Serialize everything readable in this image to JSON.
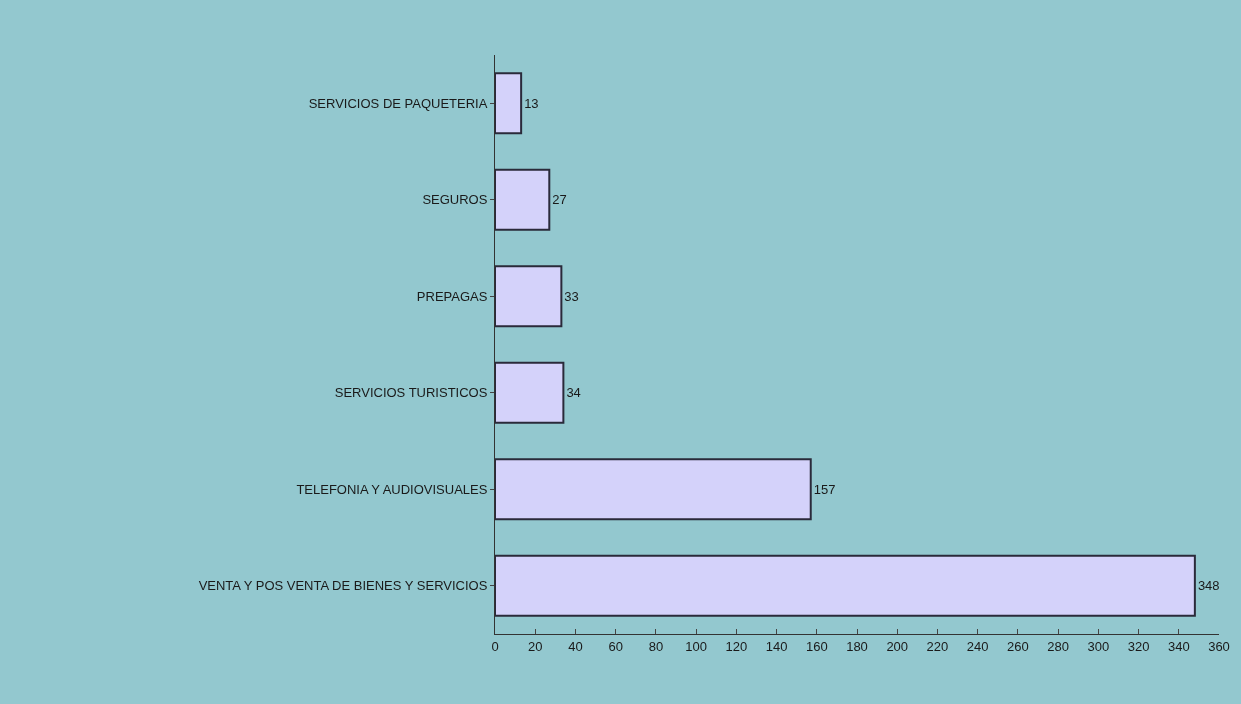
{
  "chart_data": {
    "type": "bar",
    "orientation": "horizontal",
    "categories": [
      "SERVICIOS DE PAQUETERIA",
      "SEGUROS",
      "PREPAGAS",
      "SERVICIOS TURISTICOS",
      "TELEFONIA Y AUDIOVISUALES",
      "VENTA Y POS VENTA DE BIENES Y SERVICIOS"
    ],
    "values": [
      13,
      27,
      33,
      34,
      157,
      348
    ],
    "color": "#d4d2fa",
    "xlim": [
      0,
      360
    ],
    "xticks": [
      0,
      20,
      40,
      60,
      80,
      100,
      120,
      140,
      160,
      180,
      200,
      220,
      240,
      260,
      280,
      300,
      320,
      340,
      360
    ],
    "data_labels": true,
    "grid": false,
    "legend": false
  }
}
